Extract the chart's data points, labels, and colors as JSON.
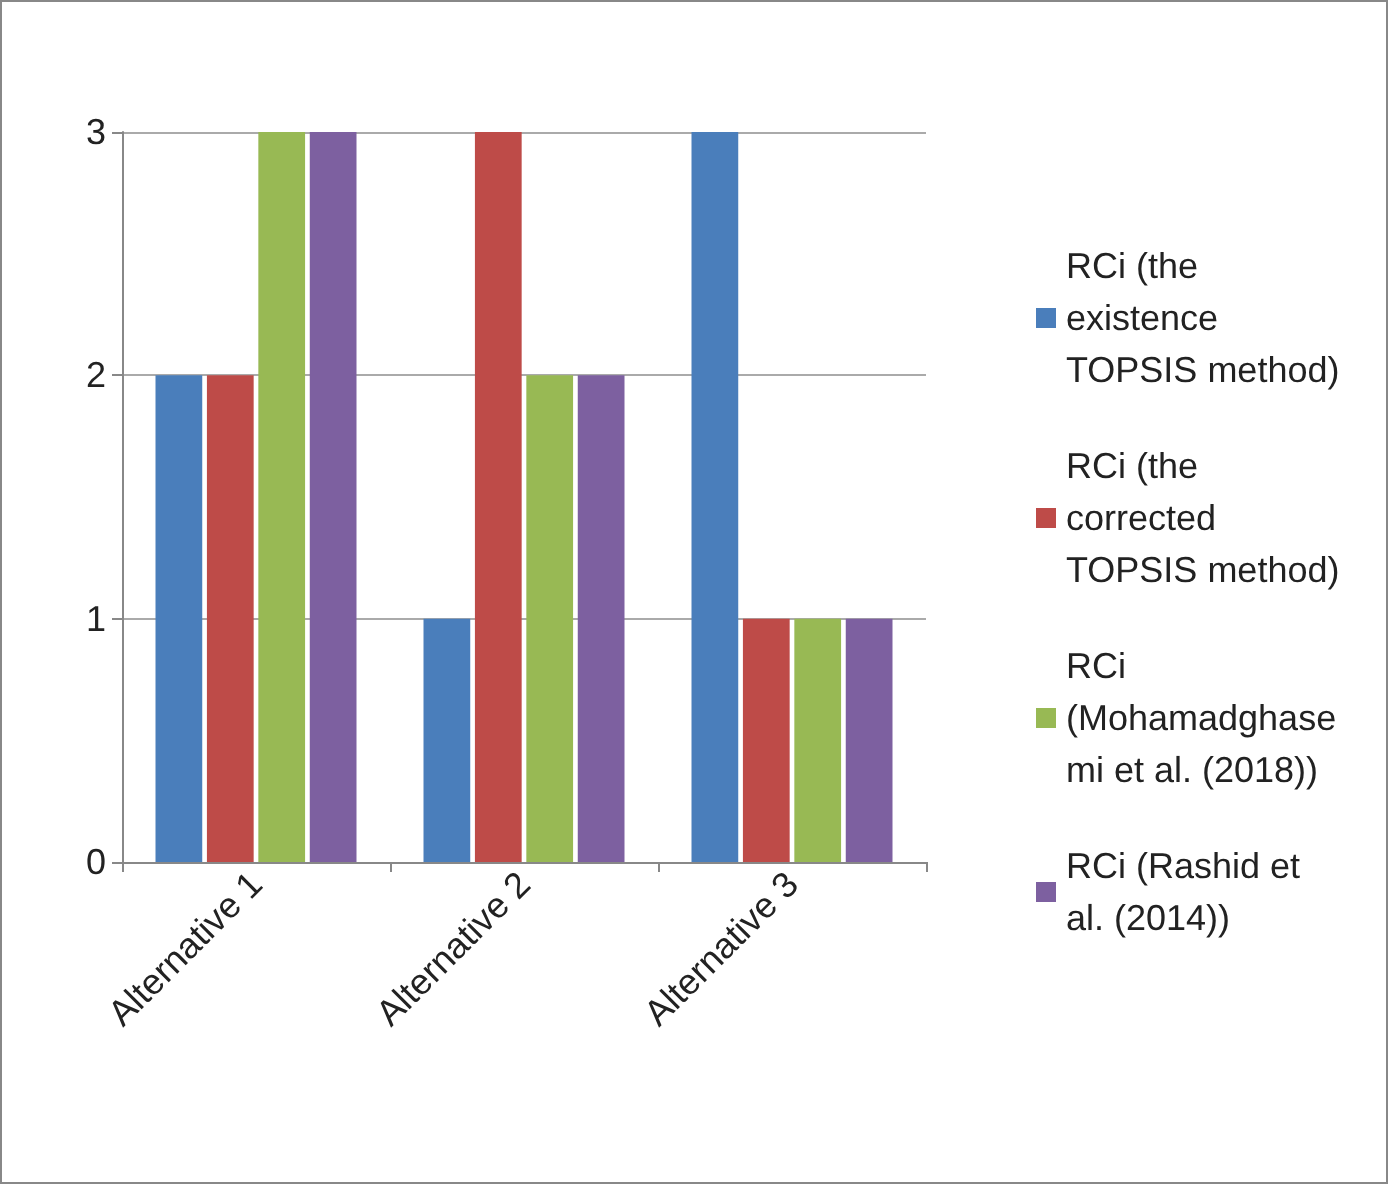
{
  "chart_data": {
    "type": "bar",
    "categories": [
      "Alternative 1",
      "Alternative 2",
      "Alternative 3"
    ],
    "series": [
      {
        "name": "RCi (the existence TOPSIS method)",
        "color": "#4a7ebb",
        "values": [
          2,
          1,
          3
        ]
      },
      {
        "name": "RCi (the corrected TOPSIS method)",
        "color": "#be4b48",
        "values": [
          2,
          3,
          1
        ]
      },
      {
        "name": "RCi (Mohamadghasemi et al. (2018))",
        "color": "#98b954",
        "values": [
          3,
          2,
          1
        ]
      },
      {
        "name": "RCi (Rashid et al. (2014))",
        "color": "#7d60a0",
        "values": [
          3,
          2,
          1
        ]
      }
    ],
    "ylim": [
      0,
      3
    ],
    "yticks": [
      0,
      1,
      2,
      3
    ],
    "grid": "y",
    "legend": "right"
  }
}
